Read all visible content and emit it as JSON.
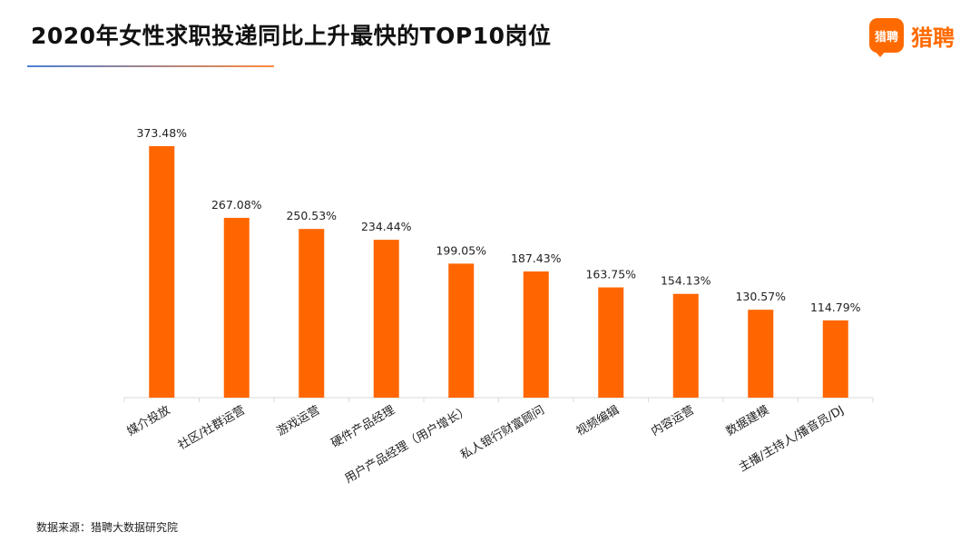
{
  "title": "2020年女性求职投递同比上升最快的TOP10岗位",
  "logo": {
    "badge_text": "猎聘",
    "text": "猎聘",
    "color": "#ff6a00"
  },
  "source": "数据来源：猎聘大数据研究院",
  "chart_data": {
    "type": "bar",
    "title": "",
    "xlabel": "",
    "ylabel": "",
    "categories": [
      "媒介投放",
      "社区/社群运营",
      "游戏运营",
      "硬件产品经理",
      "用户产品经理（用户增长）",
      "私人银行财富顾问",
      "视频编辑",
      "内容运营",
      "数据建模",
      "主播/主持人/播音员/DJ"
    ],
    "values": [
      373.48,
      267.08,
      250.53,
      234.44,
      199.05,
      187.43,
      163.75,
      154.13,
      130.57,
      114.79
    ],
    "data_labels": [
      "373.48%",
      "267.08%",
      "250.53%",
      "234.44%",
      "199.05%",
      "187.43%",
      "163.75%",
      "154.13%",
      "130.57%",
      "114.79%"
    ],
    "ylim": [
      0,
      373.48
    ],
    "bar_color": "#ff6600",
    "grid": false,
    "legend": "none"
  }
}
